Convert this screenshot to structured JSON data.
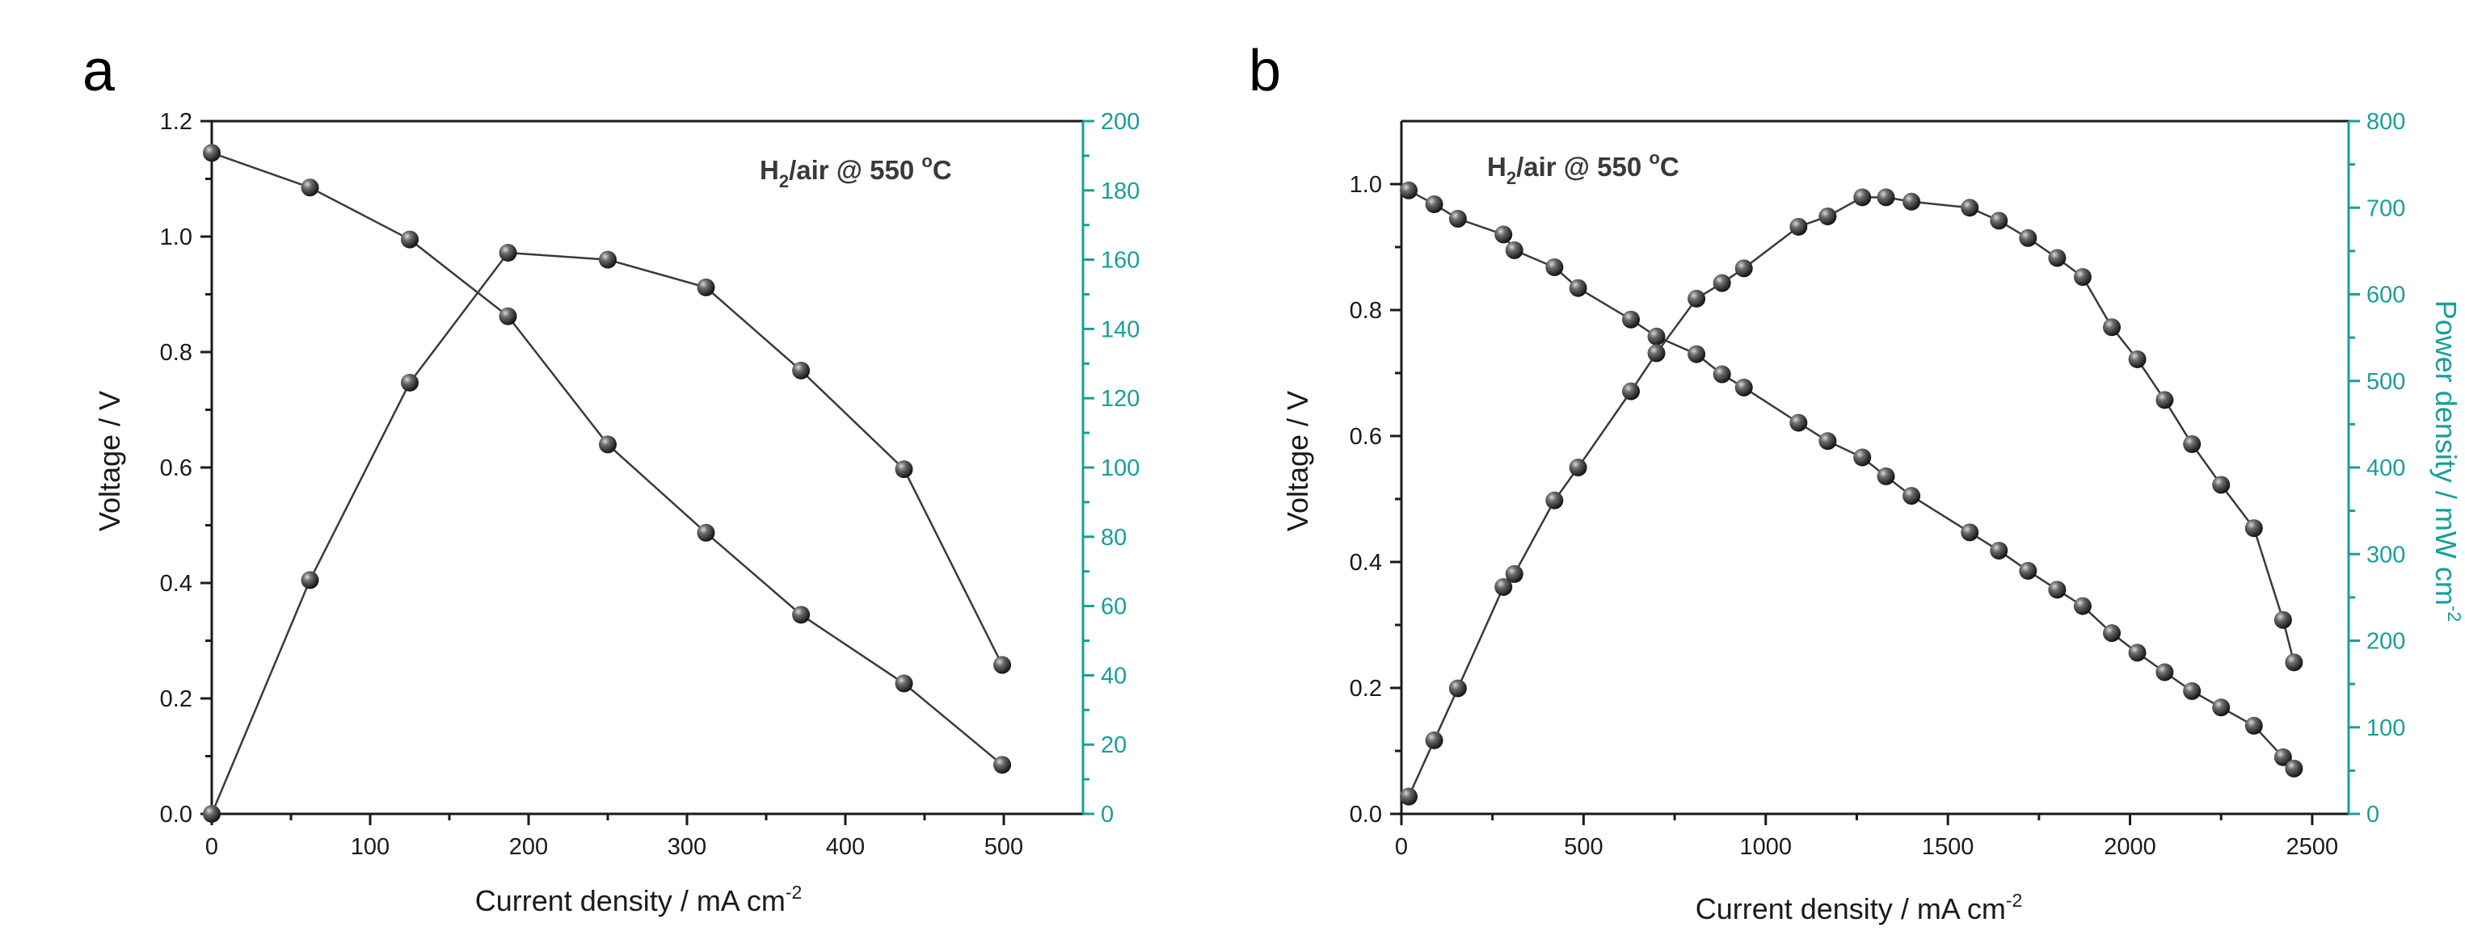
{
  "chart_data": [
    {
      "type": "line",
      "panel_label": "a",
      "annotation": {
        "main": "H",
        "sub": "2",
        "rest": "/air @ 550 ",
        "sup": "o",
        "tail": "C"
      },
      "xlabel": {
        "main": "Current density / mA cm",
        "sup": "-2"
      },
      "ylabel": "Voltage / V",
      "y2label": null,
      "xlim": [
        0,
        550
      ],
      "ylim": [
        0,
        1.2
      ],
      "y2lim": [
        0,
        200
      ],
      "xticks": [
        0,
        100,
        200,
        300,
        400,
        500
      ],
      "yticks": [
        "0.0",
        "0.2",
        "0.4",
        "0.6",
        "0.8",
        "1.0",
        "1.2"
      ],
      "y2ticks": [
        0,
        20,
        40,
        60,
        80,
        100,
        120,
        140,
        160,
        180,
        200
      ],
      "series": [
        {
          "name": "Voltage",
          "axis": "left",
          "x": [
            0,
            62,
            125,
            187,
            250,
            312,
            372,
            437,
            499
          ],
          "values": [
            1.145,
            1.085,
            0.995,
            0.862,
            0.64,
            0.487,
            0.345,
            0.226,
            0.085
          ]
        },
        {
          "name": "Power density",
          "axis": "right",
          "x": [
            0,
            62,
            125,
            187,
            250,
            312,
            372,
            437,
            499
          ],
          "values": [
            0,
            67.5,
            124.5,
            162,
            160,
            152,
            128,
            99.5,
            43
          ]
        }
      ]
    },
    {
      "type": "line",
      "panel_label": "b",
      "annotation": {
        "main": "H",
        "sub": "2",
        "rest": "/air @ 550 ",
        "sup": "o",
        "tail": "C"
      },
      "xlabel": {
        "main": "Current density / mA cm",
        "sup": "-2"
      },
      "ylabel": "Voltage / V",
      "y2label": {
        "main": "Power density / mW cm",
        "sup": "-2"
      },
      "xlim": [
        0,
        2600
      ],
      "ylim": [
        0,
        1.1
      ],
      "y2lim": [
        0,
        800
      ],
      "xticks": [
        0,
        500,
        1000,
        1500,
        2000,
        2500
      ],
      "yticks": [
        "0.0",
        "0.2",
        "0.4",
        "0.6",
        "0.8",
        "1.0"
      ],
      "y2ticks": [
        0,
        100,
        200,
        300,
        400,
        500,
        600,
        700,
        800
      ],
      "series": [
        {
          "name": "Voltage",
          "axis": "left",
          "x": [
            20,
            90,
            155,
            280,
            310,
            420,
            485,
            630,
            700,
            810,
            880,
            940,
            1090,
            1170,
            1265,
            1330,
            1400,
            1560,
            1640,
            1720,
            1800,
            1870,
            1950,
            2020,
            2095,
            2170,
            2250,
            2340,
            2420,
            2450
          ],
          "values": [
            0.99,
            0.968,
            0.945,
            0.92,
            0.895,
            0.868,
            0.835,
            0.785,
            0.758,
            0.73,
            0.698,
            0.677,
            0.621,
            0.592,
            0.566,
            0.536,
            0.505,
            0.447,
            0.418,
            0.386,
            0.356,
            0.33,
            0.287,
            0.256,
            0.225,
            0.195,
            0.169,
            0.14,
            0.09,
            0.072
          ]
        },
        {
          "name": "Power density",
          "axis": "right",
          "x": [
            20,
            90,
            155,
            280,
            310,
            420,
            485,
            630,
            700,
            810,
            880,
            940,
            1090,
            1170,
            1265,
            1330,
            1400,
            1560,
            1640,
            1720,
            1800,
            1870,
            1950,
            2020,
            2095,
            2170,
            2250,
            2340,
            2420,
            2450
          ],
          "values": [
            20,
            85,
            145,
            262,
            277,
            362,
            400,
            488,
            532,
            595,
            613,
            630,
            678,
            690,
            712,
            712,
            707,
            700,
            685,
            665,
            642,
            620,
            562,
            525,
            478,
            427,
            380,
            330,
            224,
            175
          ]
        }
      ]
    }
  ]
}
